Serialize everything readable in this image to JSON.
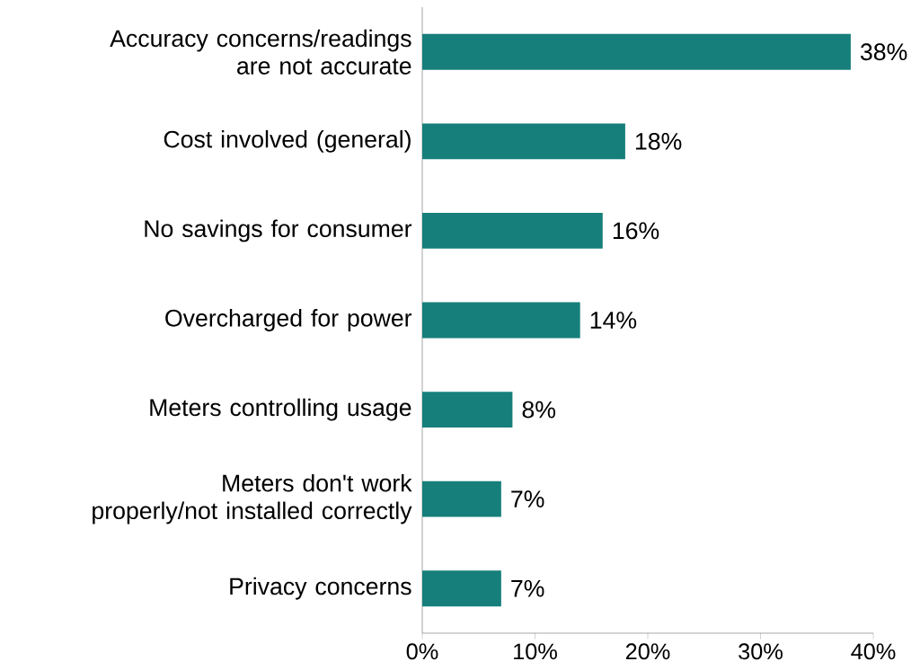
{
  "chart_data": {
    "type": "bar",
    "orientation": "horizontal",
    "categories": [
      "Accuracy concerns/readings are not accurate",
      "Cost involved (general)",
      "No savings for consumer",
      "Overcharged for power",
      "Meters controlling usage",
      "Meters don't work properly/not installed correctly",
      "Privacy concerns"
    ],
    "values": [
      38,
      18,
      16,
      14,
      8,
      7,
      7
    ],
    "value_labels": [
      "38%",
      "18%",
      "16%",
      "14%",
      "8%",
      "7%",
      "7%"
    ],
    "color": "#167f7b",
    "xlim": [
      0,
      40
    ],
    "xticks": [
      {
        "value": 0,
        "label": "0%"
      },
      {
        "value": 10,
        "label": "10%"
      },
      {
        "value": 20,
        "label": "20%"
      },
      {
        "value": 30,
        "label": "30%"
      },
      {
        "value": 40,
        "label": "40%"
      }
    ],
    "grid": false
  }
}
